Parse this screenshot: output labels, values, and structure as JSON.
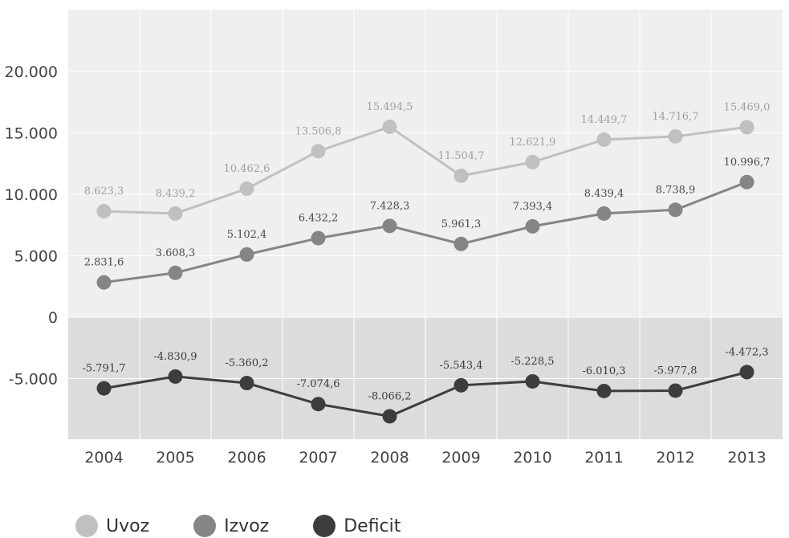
{
  "chart_data": {
    "type": "line",
    "categories": [
      "2004",
      "2005",
      "2006",
      "2007",
      "2008",
      "2009",
      "2010",
      "2011",
      "2012",
      "2013"
    ],
    "series": [
      {
        "name": "Uvoz",
        "color": "#c0c0c0",
        "values": [
          8623.3,
          8439.2,
          10462.6,
          13506.8,
          15494.5,
          11504.7,
          12621.9,
          14449.7,
          14716.7,
          15469.0
        ],
        "labels": [
          "8.623,3",
          "8.439,2",
          "10.462,6",
          "13.506,8",
          "15.494,5",
          "11.504,7",
          "12.621,9",
          "14.449,7",
          "14.716,7",
          "15.469,0"
        ]
      },
      {
        "name": "Izvoz",
        "color": "#858585",
        "values": [
          2831.6,
          3608.3,
          5102.4,
          6432.2,
          7428.3,
          5961.3,
          7393.4,
          8439.4,
          8738.9,
          10996.7
        ],
        "labels": [
          "2.831,6",
          "3.608,3",
          "5.102,4",
          "6.432,2",
          "7.428,3",
          "5.961,3",
          "7.393,4",
          "8.439,4",
          "8.738,9",
          "10.996,7"
        ]
      },
      {
        "name": "Deficit",
        "color": "#3d3d3d",
        "values": [
          -5791.7,
          -4830.9,
          -5360.2,
          -7074.6,
          -8066.2,
          -5543.4,
          -5228.5,
          -6010.3,
          -5977.8,
          -4472.3
        ],
        "labels": [
          "-5.791,7",
          "-4.830,9",
          "-5.360,2",
          "-7.074,6",
          "-8.066,2",
          "-5.543,4",
          "-5.228,5",
          "-6.010,3",
          "-5.977,8",
          "-4.472,3"
        ]
      }
    ],
    "y_ticks": [
      {
        "value": 20000,
        "label": "20.000"
      },
      {
        "value": 15000,
        "label": "15.000"
      },
      {
        "value": 10000,
        "label": "10.000"
      },
      {
        "value": 5000,
        "label": "5.000"
      },
      {
        "value": 0,
        "label": "0"
      },
      {
        "value": -5000,
        "label": "-5.000"
      }
    ],
    "ylim": [
      -10000,
      25000
    ],
    "grid": true,
    "legend_position": "bottom-left",
    "colors": {
      "positive_background": "#efefef",
      "negative_background": "#dcdcdc",
      "grid": "#ffffff",
      "line_uvoz": "#c0c0c0",
      "line_izvoz": "#858585",
      "line_deficit": "#3d3d3d"
    }
  }
}
